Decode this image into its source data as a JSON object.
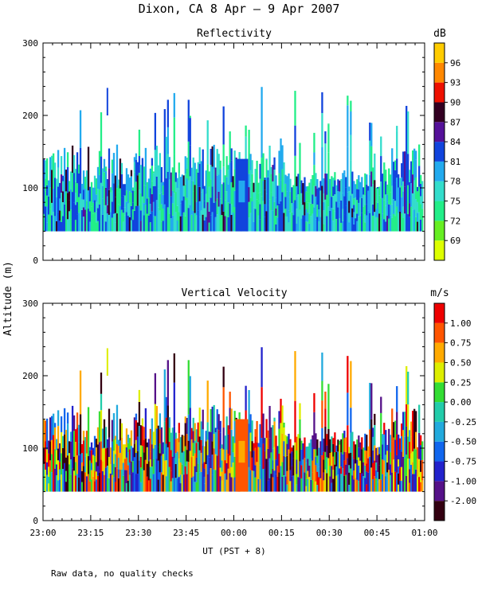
{
  "figure_title": "Dixon, CA  8 Apr –  9 Apr 2007",
  "shared_y_label": "Altitude (m)",
  "footnote": "Raw data, no quality checks",
  "chart_data": [
    {
      "type": "heatmap",
      "title": "Reflectivity",
      "colorbar_unit": "dB",
      "y_ticks": [
        0,
        100,
        200,
        300
      ],
      "ylim": [
        0,
        300
      ],
      "x_ticks": [],
      "xlim_minutes": [
        0,
        120
      ],
      "colorbar_ticks": [
        "69",
        "72",
        "75",
        "78",
        "81",
        "84",
        "87",
        "90",
        "93",
        "96"
      ],
      "colorbar_colors": [
        "#ddff00",
        "#66ee22",
        "#22ee88",
        "#33ddcc",
        "#22aaee",
        "#1144dd",
        "#551199",
        "#330022",
        "#ee1100",
        "#ff8800",
        "#ffcc00"
      ],
      "data_range_m": [
        40,
        240
      ]
    },
    {
      "type": "heatmap",
      "title": "Vertical Velocity",
      "colorbar_unit": "m/s",
      "y_ticks": [
        0,
        100,
        200,
        300
      ],
      "ylim": [
        0,
        300
      ],
      "x_ticks": [
        "23:00",
        "23:15",
        "23:30",
        "23:45",
        "00:00",
        "00:15",
        "00:30",
        "00:45",
        "01:00"
      ],
      "xlabel": "UT  (PST + 8)",
      "xlim_minutes": [
        0,
        120
      ],
      "colorbar_ticks": [
        "-2.00",
        "-1.00",
        "-0.75",
        "-0.50",
        "-0.25",
        "0.00",
        "0.25",
        "0.50",
        "0.75",
        "1.00"
      ],
      "colorbar_colors": [
        "#330011",
        "#551188",
        "#2222cc",
        "#1166ee",
        "#22aadd",
        "#22ccaa",
        "#33dd33",
        "#ddee00",
        "#ffaa00",
        "#ff5500",
        "#ee0000"
      ],
      "data_range_m": [
        40,
        240
      ]
    }
  ]
}
